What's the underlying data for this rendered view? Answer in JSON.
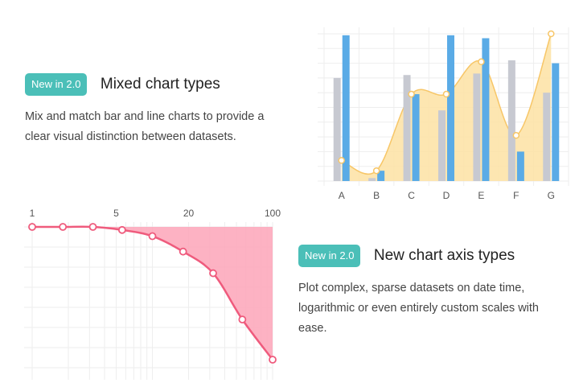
{
  "features": [
    {
      "badge": "New in 2.0",
      "title": "Mixed chart types",
      "description": "Mix and match bar and line charts to provide a clear visual distinction between datasets."
    },
    {
      "badge": "New in 2.0",
      "title": "New chart axis types",
      "description": "Plot complex, sparse datasets on date time, logarithmic or even entirely custom scales with ease."
    }
  ],
  "colors": {
    "badge": "#4bbfb8",
    "bar_gray": "#c7c9d1",
    "bar_blue": "#5aabe6",
    "area_yellow": "#fde2a3",
    "line_yellow": "#f7c667",
    "line_red": "#ef5b7d",
    "area_red": "#fda5b8"
  },
  "chart_data": [
    {
      "type": "bar",
      "categories": [
        "A",
        "B",
        "C",
        "D",
        "E",
        "F",
        "G"
      ],
      "ylim": [
        0,
        100
      ],
      "grid": true,
      "series": [
        {
          "type": "bar",
          "values": [
            70,
            2,
            72,
            48,
            73,
            82,
            60
          ]
        },
        {
          "type": "bar",
          "values": [
            99,
            7,
            59,
            99,
            97,
            20,
            80
          ]
        },
        {
          "type": "line",
          "values": [
            14,
            7,
            59,
            59,
            81,
            31,
            100
          ]
        }
      ]
    },
    {
      "type": "line",
      "x_scale": "logarithmic",
      "x_ticks": [
        "1",
        "5",
        "20",
        "100"
      ],
      "xlim": [
        1,
        100
      ],
      "grid": true,
      "series": [
        {
          "type": "area",
          "x": [
            1,
            1.8,
            3.2,
            5.6,
            10,
            18,
            32,
            56,
            100
          ],
          "values": [
            100,
            100,
            100,
            99,
            97,
            92,
            85,
            70,
            57
          ]
        }
      ]
    }
  ]
}
